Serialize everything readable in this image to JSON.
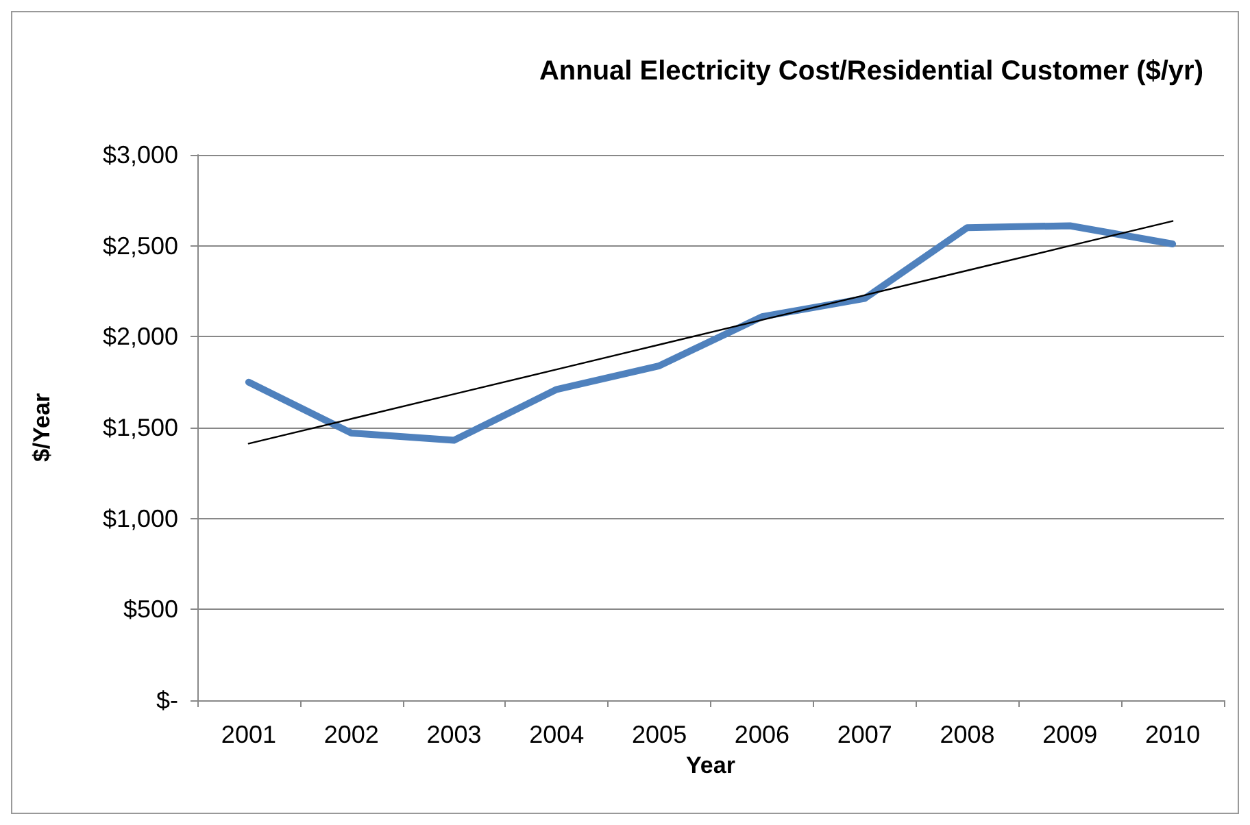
{
  "chart_data": {
    "type": "line",
    "title": "Annual Electricity Cost/Residential Customer ($/yr)",
    "xlabel": "Year",
    "ylabel": "$/Year",
    "categories": [
      "2001",
      "2002",
      "2003",
      "2004",
      "2005",
      "2006",
      "2007",
      "2008",
      "2009",
      "2010"
    ],
    "series": [
      {
        "color": "#4f81bd",
        "values": [
          1750,
          1470,
          1430,
          1710,
          1840,
          2110,
          2210,
          2600,
          2610,
          2510
        ]
      },
      {
        "type": "line",
        "color": "#000000",
        "values": [
          1412,
          1548,
          1684,
          1820,
          1956,
          2092,
          2228,
          2364,
          2500,
          2636
        ]
      }
    ],
    "ylim": [
      0,
      3000
    ],
    "yticks": [
      {
        "value": 0,
        "label": "$-"
      },
      {
        "value": 500,
        "label": "$500"
      },
      {
        "value": 1000,
        "label": "$1,000"
      },
      {
        "value": 1500,
        "label": "$1,500"
      },
      {
        "value": 2000,
        "label": "$2,000"
      },
      {
        "value": 2500,
        "label": "$2,500"
      },
      {
        "value": 3000,
        "label": "$3,000"
      }
    ],
    "grid": "y",
    "marker": "none",
    "line_style": "solid"
  }
}
